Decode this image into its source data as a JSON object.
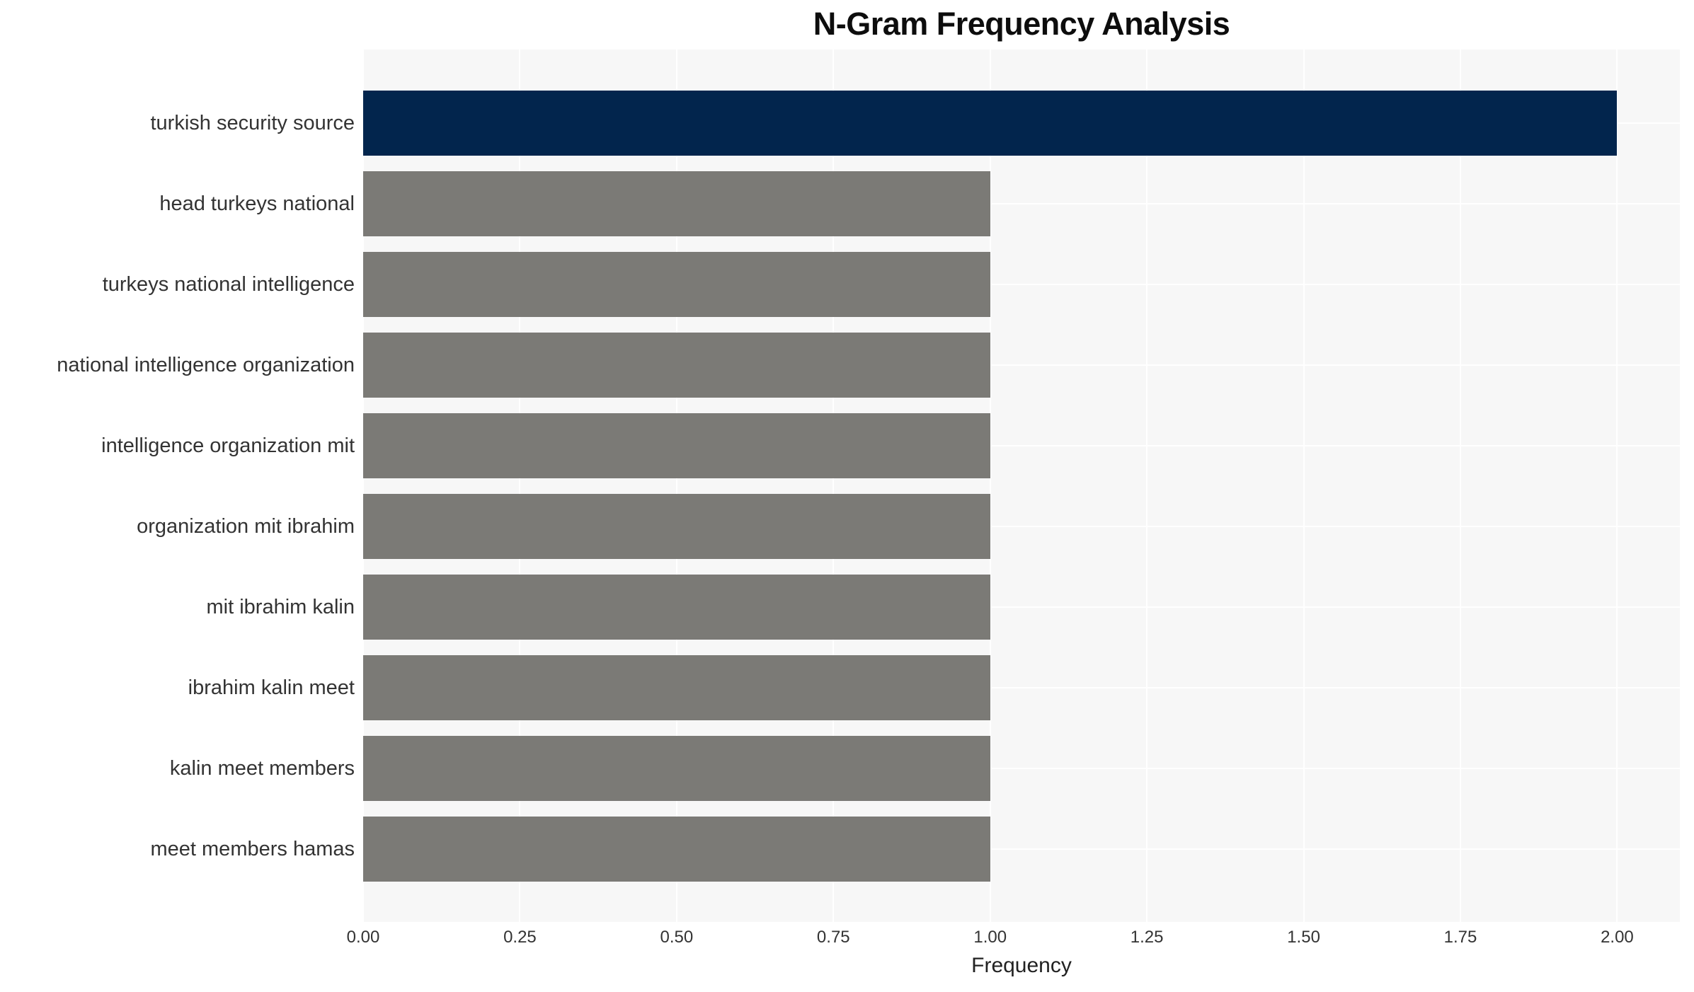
{
  "chart_data": {
    "type": "bar",
    "orientation": "horizontal",
    "title": "N-Gram Frequency Analysis",
    "xlabel": "Frequency",
    "ylabel": "",
    "categories": [
      "turkish security source",
      "head turkeys national",
      "turkeys national intelligence",
      "national intelligence organization",
      "intelligence organization mit",
      "organization mit ibrahim",
      "mit ibrahim kalin",
      "ibrahim kalin meet",
      "kalin meet members",
      "meet members hamas"
    ],
    "values": [
      2,
      1,
      1,
      1,
      1,
      1,
      1,
      1,
      1,
      1
    ],
    "bar_colors": [
      "#02254d",
      "#7b7a76",
      "#7b7a76",
      "#7b7a76",
      "#7b7a76",
      "#7b7a76",
      "#7b7a76",
      "#7b7a76",
      "#7b7a76",
      "#7b7a76"
    ],
    "xlim": [
      0,
      2.1
    ],
    "xticks": [
      0,
      0.25,
      0.5,
      0.75,
      1.0,
      1.25,
      1.5,
      1.75,
      2.0
    ],
    "xtick_labels": [
      "0.00",
      "0.25",
      "0.50",
      "0.75",
      "1.00",
      "1.25",
      "1.50",
      "1.75",
      "2.00"
    ],
    "grid": true,
    "legend": "none",
    "plot_background": "#f7f7f7",
    "gridline_color": "#ffffff",
    "highlight_color": "#02254d",
    "default_bar_color": "#7b7a76"
  }
}
